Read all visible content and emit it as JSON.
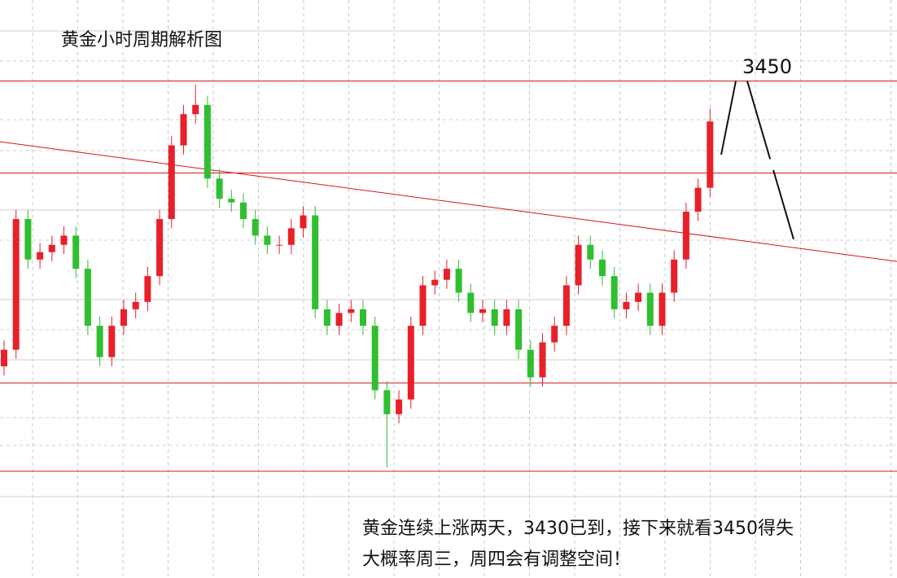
{
  "chart_data": {
    "type": "candlestick",
    "title": "黄金小时周期解析图",
    "target_label": "3450",
    "annotation": [
      "黄金连续上涨两天，3430已到，接下来就看3450得失",
      "大概率周三，周四会有调整空间！"
    ],
    "ylim": [
      3180,
      3494
    ],
    "up_color": "#e8202a",
    "down_color": "#2fbf2f",
    "level_color": "#d8141a",
    "grid": true,
    "levels": [
      3450,
      3400,
      3286,
      3238
    ],
    "trendline": [
      3417,
      3352
    ],
    "projection": [
      3410,
      3450,
      3364
    ],
    "open": [
      3295,
      3304,
      3375,
      3353,
      3357,
      3361,
      3366,
      3348,
      3317,
      3300,
      3317,
      3326,
      3330,
      3344,
      3375,
      3415,
      3432,
      3437,
      3397,
      3386,
      3384,
      3375,
      3366,
      3361,
      3361,
      3370,
      3377,
      3326,
      3317,
      3324,
      3326,
      3317,
      3282,
      3269,
      3277,
      3317,
      3339,
      3342,
      3348,
      3335,
      3324,
      3326,
      3317,
      3326,
      3304,
      3289,
      3308,
      3317,
      3339,
      3361,
      3353,
      3344,
      3326,
      3330,
      3335,
      3317,
      3335,
      3353,
      3379,
      3392
    ],
    "high": [
      3309,
      3380,
      3380,
      3362,
      3366,
      3371,
      3371,
      3353,
      3322,
      3322,
      3331,
      3335,
      3349,
      3380,
      3420,
      3437,
      3448,
      3442,
      3402,
      3391,
      3389,
      3380,
      3371,
      3366,
      3375,
      3382,
      3382,
      3331,
      3329,
      3331,
      3331,
      3322,
      3287,
      3282,
      3322,
      3344,
      3347,
      3353,
      3353,
      3340,
      3331,
      3331,
      3331,
      3331,
      3309,
      3313,
      3322,
      3344,
      3366,
      3366,
      3358,
      3349,
      3335,
      3340,
      3340,
      3340,
      3358,
      3384,
      3397,
      3435
    ],
    "low": [
      3290,
      3299,
      3348,
      3348,
      3352,
      3356,
      3343,
      3312,
      3295,
      3295,
      3312,
      3321,
      3325,
      3339,
      3370,
      3410,
      3427,
      3392,
      3381,
      3379,
      3370,
      3361,
      3356,
      3356,
      3356,
      3365,
      3321,
      3312,
      3312,
      3319,
      3312,
      3277,
      3240,
      3264,
      3272,
      3312,
      3334,
      3337,
      3330,
      3319,
      3319,
      3312,
      3312,
      3299,
      3284,
      3284,
      3303,
      3312,
      3334,
      3348,
      3339,
      3321,
      3321,
      3325,
      3312,
      3312,
      3330,
      3348,
      3374,
      3387
    ],
    "close": [
      3304,
      3375,
      3353,
      3357,
      3361,
      3366,
      3348,
      3317,
      3300,
      3317,
      3326,
      3330,
      3344,
      3375,
      3415,
      3432,
      3437,
      3397,
      3386,
      3384,
      3375,
      3366,
      3361,
      3361,
      3370,
      3377,
      3326,
      3317,
      3324,
      3326,
      3317,
      3282,
      3269,
      3277,
      3317,
      3339,
      3342,
      3348,
      3335,
      3324,
      3326,
      3317,
      3326,
      3304,
      3289,
      3308,
      3317,
      3339,
      3361,
      3353,
      3344,
      3326,
      3330,
      3335,
      3317,
      3335,
      3353,
      3379,
      3392,
      3428
    ]
  }
}
